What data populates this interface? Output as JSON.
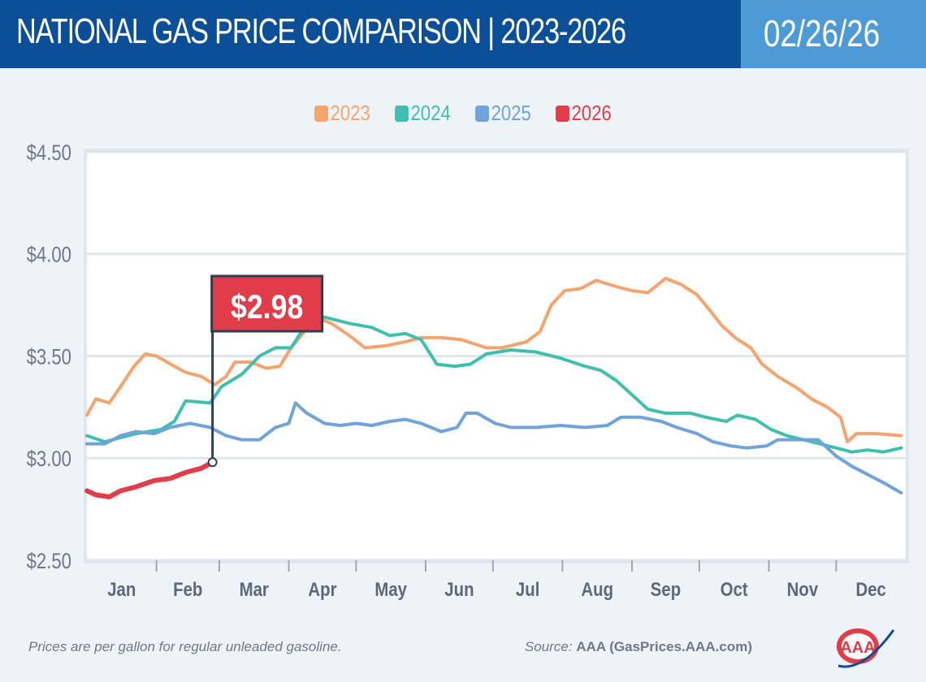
{
  "header": {
    "title": "NATIONAL GAS PRICE COMPARISON | 2023-2026",
    "date": "02/26/26"
  },
  "footer": {
    "note": "Prices are per gallon for regular unleaded gasoline.",
    "source_label": "Source:",
    "source": "AAA (GasPrices.AAA.com)"
  },
  "logo": {
    "text": "AAA"
  },
  "chart_data": {
    "type": "line",
    "title": "NATIONAL GAS PRICE COMPARISON | 2023-2026",
    "xlabel": "",
    "ylabel": "",
    "ylim": [
      2.5,
      4.5
    ],
    "yticks": [
      "$2.50",
      "$3.00",
      "$3.50",
      "$4.00",
      "$4.50"
    ],
    "ytick_values": [
      2.5,
      3.0,
      3.5,
      4.0,
      4.5
    ],
    "xticks": [
      "Jan",
      "Feb",
      "Mar",
      "Apr",
      "May",
      "Jun",
      "Jul",
      "Aug",
      "Sep",
      "Oct",
      "Nov",
      "Dec"
    ],
    "grid": "horizontal",
    "legend_position": "top-center",
    "annotation": {
      "label": "$2.98",
      "date": "02-26",
      "value": 2.98,
      "color": "#e03c4a"
    },
    "series": [
      {
        "name": "2023",
        "color": "#f4a46c",
        "points": [
          [
            "01-01",
            3.21
          ],
          [
            "01-05",
            3.29
          ],
          [
            "01-11",
            3.27
          ],
          [
            "01-16",
            3.35
          ],
          [
            "01-22",
            3.45
          ],
          [
            "01-27",
            3.51
          ],
          [
            "02-01",
            3.5
          ],
          [
            "02-09",
            3.45
          ],
          [
            "02-14",
            3.42
          ],
          [
            "02-21",
            3.4
          ],
          [
            "02-27",
            3.36
          ],
          [
            "03-04",
            3.4
          ],
          [
            "03-08",
            3.47
          ],
          [
            "03-15",
            3.47
          ],
          [
            "03-22",
            3.44
          ],
          [
            "03-28",
            3.45
          ],
          [
            "04-02",
            3.54
          ],
          [
            "04-08",
            3.62
          ],
          [
            "04-15",
            3.68
          ],
          [
            "04-20",
            3.66
          ],
          [
            "04-28",
            3.6
          ],
          [
            "05-05",
            3.54
          ],
          [
            "05-14",
            3.55
          ],
          [
            "05-23",
            3.57
          ],
          [
            "05-30",
            3.59
          ],
          [
            "06-08",
            3.59
          ],
          [
            "06-17",
            3.58
          ],
          [
            "06-28",
            3.54
          ],
          [
            "07-05",
            3.54
          ],
          [
            "07-16",
            3.57
          ],
          [
            "07-22",
            3.62
          ],
          [
            "07-27",
            3.75
          ],
          [
            "08-02",
            3.82
          ],
          [
            "08-09",
            3.83
          ],
          [
            "08-16",
            3.87
          ],
          [
            "08-25",
            3.84
          ],
          [
            "09-01",
            3.82
          ],
          [
            "09-08",
            3.81
          ],
          [
            "09-16",
            3.88
          ],
          [
            "09-23",
            3.85
          ],
          [
            "09-30",
            3.8
          ],
          [
            "10-06",
            3.72
          ],
          [
            "10-11",
            3.65
          ],
          [
            "10-17",
            3.59
          ],
          [
            "10-24",
            3.54
          ],
          [
            "10-29",
            3.46
          ],
          [
            "11-05",
            3.4
          ],
          [
            "11-14",
            3.34
          ],
          [
            "11-20",
            3.29
          ],
          [
            "11-27",
            3.25
          ],
          [
            "12-03",
            3.2
          ],
          [
            "12-06",
            3.08
          ],
          [
            "12-10",
            3.12
          ],
          [
            "12-19",
            3.12
          ],
          [
            "12-30",
            3.11
          ]
        ]
      },
      {
        "name": "2024",
        "color": "#3fbfae",
        "points": [
          [
            "01-01",
            3.11
          ],
          [
            "01-09",
            3.08
          ],
          [
            "01-16",
            3.1
          ],
          [
            "01-23",
            3.12
          ],
          [
            "02-03",
            3.14
          ],
          [
            "02-09",
            3.18
          ],
          [
            "02-14",
            3.28
          ],
          [
            "02-25",
            3.27
          ],
          [
            "03-02",
            3.35
          ],
          [
            "03-11",
            3.41
          ],
          [
            "03-19",
            3.5
          ],
          [
            "03-26",
            3.54
          ],
          [
            "04-02",
            3.54
          ],
          [
            "04-09",
            3.66
          ],
          [
            "04-17",
            3.69
          ],
          [
            "04-28",
            3.66
          ],
          [
            "05-08",
            3.64
          ],
          [
            "05-16",
            3.6
          ],
          [
            "05-23",
            3.61
          ],
          [
            "05-30",
            3.58
          ],
          [
            "06-06",
            3.46
          ],
          [
            "06-14",
            3.45
          ],
          [
            "06-21",
            3.46
          ],
          [
            "06-28",
            3.51
          ],
          [
            "07-09",
            3.53
          ],
          [
            "07-20",
            3.52
          ],
          [
            "07-31",
            3.49
          ],
          [
            "08-11",
            3.45
          ],
          [
            "08-18",
            3.43
          ],
          [
            "08-25",
            3.38
          ],
          [
            "09-01",
            3.31
          ],
          [
            "09-08",
            3.24
          ],
          [
            "09-16",
            3.22
          ],
          [
            "09-27",
            3.22
          ],
          [
            "10-04",
            3.2
          ],
          [
            "10-13",
            3.18
          ],
          [
            "10-18",
            3.21
          ],
          [
            "10-26",
            3.19
          ],
          [
            "11-02",
            3.14
          ],
          [
            "11-09",
            3.11
          ],
          [
            "11-20",
            3.08
          ],
          [
            "12-01",
            3.05
          ],
          [
            "12-08",
            3.03
          ],
          [
            "12-15",
            3.04
          ],
          [
            "12-22",
            3.03
          ],
          [
            "12-30",
            3.05
          ]
        ]
      },
      {
        "name": "2025",
        "color": "#6fa3dc",
        "points": [
          [
            "01-01",
            3.07
          ],
          [
            "01-09",
            3.07
          ],
          [
            "01-16",
            3.11
          ],
          [
            "01-23",
            3.13
          ],
          [
            "01-31",
            3.12
          ],
          [
            "02-07",
            3.15
          ],
          [
            "02-16",
            3.17
          ],
          [
            "02-25",
            3.15
          ],
          [
            "03-04",
            3.11
          ],
          [
            "03-11",
            3.09
          ],
          [
            "03-19",
            3.09
          ],
          [
            "03-26",
            3.15
          ],
          [
            "04-01",
            3.17
          ],
          [
            "04-04",
            3.27
          ],
          [
            "04-09",
            3.22
          ],
          [
            "04-17",
            3.17
          ],
          [
            "04-24",
            3.16
          ],
          [
            "05-01",
            3.17
          ],
          [
            "05-08",
            3.16
          ],
          [
            "05-16",
            3.18
          ],
          [
            "05-23",
            3.19
          ],
          [
            "05-30",
            3.17
          ],
          [
            "06-08",
            3.13
          ],
          [
            "06-15",
            3.15
          ],
          [
            "06-19",
            3.22
          ],
          [
            "06-24",
            3.22
          ],
          [
            "07-02",
            3.17
          ],
          [
            "07-09",
            3.15
          ],
          [
            "07-20",
            3.15
          ],
          [
            "07-31",
            3.16
          ],
          [
            "08-11",
            3.15
          ],
          [
            "08-21",
            3.16
          ],
          [
            "08-27",
            3.2
          ],
          [
            "09-05",
            3.2
          ],
          [
            "09-14",
            3.18
          ],
          [
            "09-21",
            3.15
          ],
          [
            "09-30",
            3.12
          ],
          [
            "10-07",
            3.08
          ],
          [
            "10-15",
            3.06
          ],
          [
            "10-22",
            3.05
          ],
          [
            "10-31",
            3.06
          ],
          [
            "11-05",
            3.09
          ],
          [
            "11-16",
            3.09
          ],
          [
            "11-23",
            3.09
          ],
          [
            "12-01",
            3.01
          ],
          [
            "12-08",
            2.96
          ],
          [
            "12-15",
            2.92
          ],
          [
            "12-22",
            2.88
          ],
          [
            "12-30",
            2.83
          ]
        ]
      },
      {
        "name": "2026",
        "color": "#e03c4a",
        "points": [
          [
            "01-01",
            2.84
          ],
          [
            "01-05",
            2.82
          ],
          [
            "01-11",
            2.81
          ],
          [
            "01-16",
            2.84
          ],
          [
            "01-23",
            2.86
          ],
          [
            "01-31",
            2.89
          ],
          [
            "02-07",
            2.9
          ],
          [
            "02-14",
            2.93
          ],
          [
            "02-21",
            2.95
          ],
          [
            "02-26",
            2.98
          ]
        ]
      }
    ]
  }
}
